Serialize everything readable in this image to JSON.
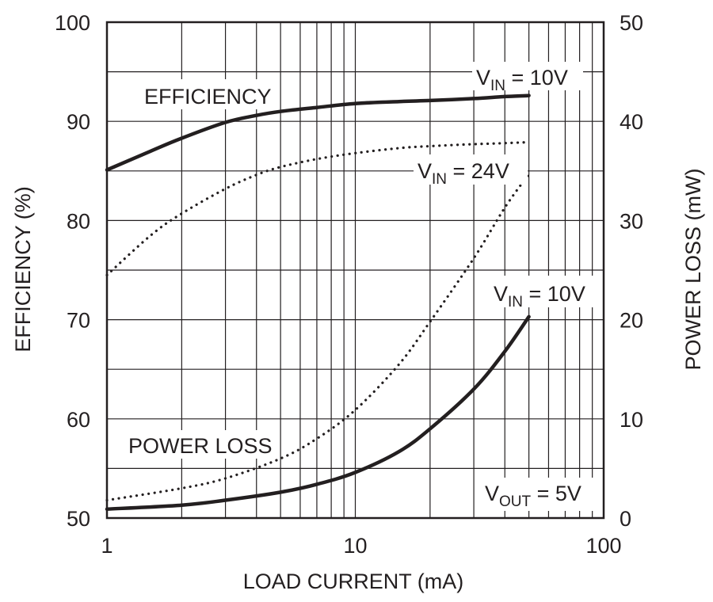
{
  "chart_data": {
    "type": "line",
    "xlabel": "LOAD CURRENT (mA)",
    "ylabel_left": "EFFICIENCY (%)",
    "ylabel_right": "POWER LOSS (mW)",
    "x_scale": "log",
    "xlim": [
      1,
      100
    ],
    "ylim_left": [
      50,
      100
    ],
    "ylim_right": [
      0,
      50
    ],
    "grid": true,
    "x_ticks": [
      "1",
      "10",
      "100"
    ],
    "y_ticks_left": [
      "50",
      "60",
      "70",
      "80",
      "90",
      "100"
    ],
    "y_ticks_right": [
      "0",
      "10",
      "20",
      "30",
      "40",
      "50"
    ],
    "series": [
      {
        "axis": "left",
        "style": "solid",
        "group": "EFFICIENCY",
        "vin": "V_IN = 10V",
        "x": [
          1,
          1.5,
          2,
          3,
          4,
          5,
          7,
          10,
          15,
          20,
          30,
          40,
          50
        ],
        "y": [
          85.1,
          87.0,
          88.3,
          89.9,
          90.6,
          91.0,
          91.4,
          91.8,
          92.0,
          92.1,
          92.3,
          92.5,
          92.6
        ]
      },
      {
        "axis": "left",
        "style": "dotted",
        "group": "EFFICIENCY",
        "vin": "V_IN = 24V",
        "x": [
          1,
          1.5,
          2,
          3,
          4,
          5,
          7,
          10,
          15,
          20,
          30,
          40,
          50
        ],
        "y": [
          74.5,
          78.5,
          80.7,
          83.2,
          84.6,
          85.4,
          86.2,
          86.8,
          87.3,
          87.5,
          87.7,
          87.8,
          87.9
        ]
      },
      {
        "axis": "right",
        "style": "solid",
        "group": "POWER LOSS",
        "vin": "V_IN = 10V",
        "x": [
          1,
          2,
          3,
          5,
          7,
          10,
          15,
          20,
          30,
          40,
          50
        ],
        "y": [
          0.9,
          1.3,
          1.8,
          2.6,
          3.4,
          4.6,
          6.7,
          9.0,
          13.0,
          16.8,
          20.3
        ]
      },
      {
        "axis": "right",
        "style": "dotted",
        "group": "POWER LOSS",
        "vin": "V_IN = 24V",
        "x": [
          1,
          2,
          3,
          5,
          7,
          10,
          15,
          20,
          30,
          40,
          50
        ],
        "y": [
          1.8,
          3.0,
          4.0,
          6.0,
          8.0,
          10.9,
          15.5,
          19.8,
          26.2,
          31.3,
          34.7
        ]
      }
    ],
    "annotations": {
      "efficiency": "EFFICIENCY",
      "power_loss": "POWER LOSS",
      "vin_eff_10": {
        "main": "V",
        "sub": "IN",
        "rest": " = 10V"
      },
      "vin_eff_24": {
        "main": "V",
        "sub": "IN",
        "rest": " = 24V"
      },
      "vin_pl_10": {
        "main": "V",
        "sub": "IN",
        "rest": " = 10V"
      },
      "vout": {
        "main": "V",
        "sub": "OUT",
        "rest": " = 5V"
      }
    }
  }
}
